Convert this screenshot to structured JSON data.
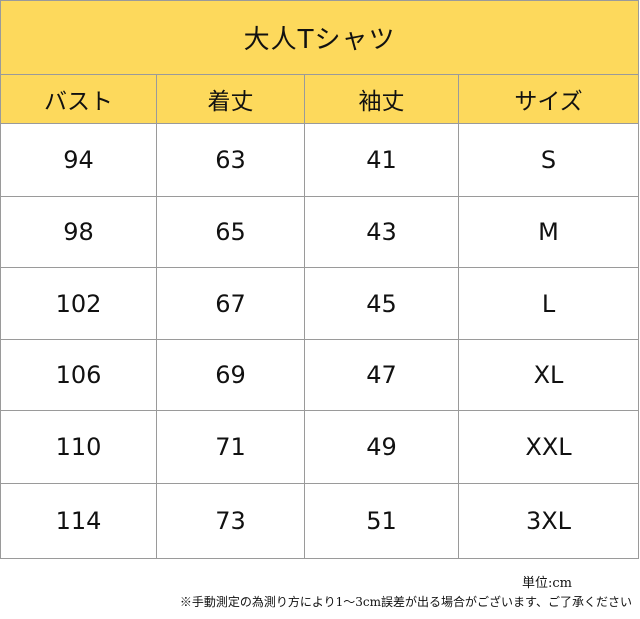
{
  "table": {
    "title": "大人Tシャツ",
    "headers": [
      "バスト",
      "着丈",
      "袖丈",
      "サイズ"
    ],
    "rows": [
      [
        "94",
        "63",
        "41",
        "S"
      ],
      [
        "98",
        "65",
        "43",
        "M"
      ],
      [
        "102",
        "67",
        "45",
        "L"
      ],
      [
        "106",
        "69",
        "47",
        "XL"
      ],
      [
        "110",
        "71",
        "49",
        "XXL"
      ],
      [
        "114",
        "73",
        "51",
        "3XL"
      ]
    ]
  },
  "notes": {
    "unit": "単位:cm",
    "caution": "※手動測定の為測り方により1～3cm誤差が出る場合がございます、ご了承ください"
  },
  "colors": {
    "header_background": "#fdd95c",
    "border": "#9a9a9a"
  }
}
